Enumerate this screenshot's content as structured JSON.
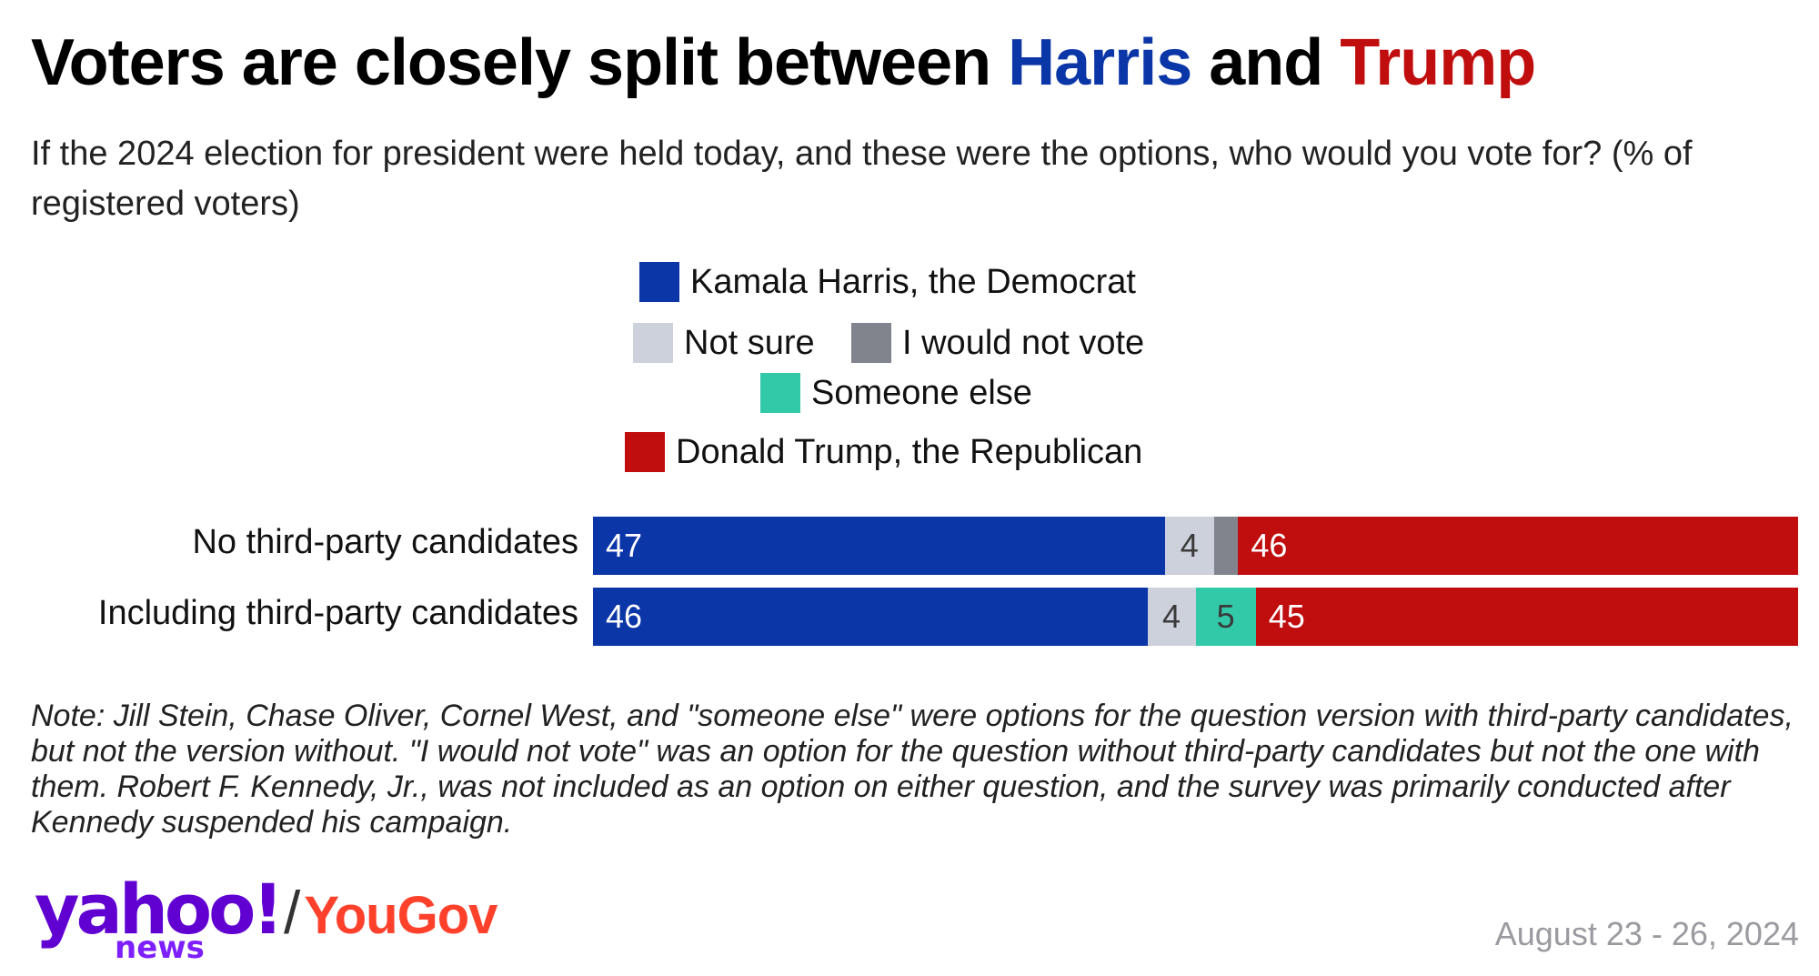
{
  "title": {
    "part1": "Voters are closely split between ",
    "harris": "Harris",
    "part2": " and ",
    "trump": "Trump"
  },
  "subtitle": "If the 2024 election for president were held today, and these were the options, who would you vote for? (% of registered voters)",
  "note": "Note: Jill Stein, Chase Oliver, Cornel West, and \"someone else\" were options for the question version with third-party candidates, but not the version without. \"I would not vote\" was an option for the question without third-party candidates but not the one with them. Robert F. Kennedy, Jr., was not included as an option on either question, and the survey was primarily conducted after Kennedy suspended his campaign.",
  "logo": {
    "yahoo": "yahoo!",
    "slash": "/",
    "yougov": "YouGov",
    "news": "news"
  },
  "date": "August 23 - 26, 2024",
  "colors": {
    "harris": "#0b36a8",
    "trump": "#c00d0d",
    "not_sure": "#cdd1dc",
    "would_not_vote": "#81838d",
    "someone_else": "#31c9a8"
  },
  "legend": [
    {
      "key": "harris",
      "label": "Kamala Harris, the Democrat"
    },
    {
      "key": "not_sure",
      "label": "Not sure"
    },
    {
      "key": "would_not_vote",
      "label": "I would not vote"
    },
    {
      "key": "someone_else",
      "label": "Someone else"
    },
    {
      "key": "trump",
      "label": "Donald Trump, the Republican"
    }
  ],
  "chart_data": {
    "type": "bar",
    "orientation": "horizontal-stacked",
    "unit": "% of registered voters",
    "categories": [
      "No third-party candidates",
      "Including third-party candidates"
    ],
    "series": [
      {
        "name": "Kamala Harris, the Democrat",
        "key": "harris",
        "values": [
          47,
          46
        ],
        "labels": [
          "47",
          "46"
        ]
      },
      {
        "name": "Not sure",
        "key": "not_sure",
        "values": [
          4,
          4
        ],
        "labels": [
          "4",
          "4"
        ]
      },
      {
        "name": "I would not vote",
        "key": "would_not_vote",
        "values": [
          2,
          0
        ],
        "labels": [
          "",
          ""
        ]
      },
      {
        "name": "Someone else",
        "key": "someone_else",
        "values": [
          0,
          5
        ],
        "labels": [
          "",
          "5"
        ]
      },
      {
        "name": "Donald Trump, the Republican",
        "key": "trump",
        "values": [
          46,
          45
        ],
        "labels": [
          "46",
          "45"
        ]
      }
    ],
    "legend_position": "top",
    "grid": false
  }
}
